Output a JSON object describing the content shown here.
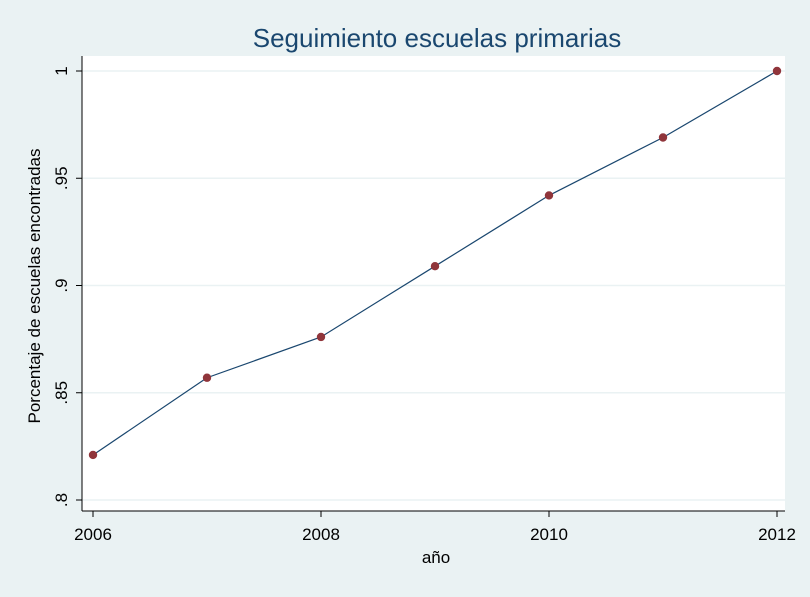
{
  "chart_data": {
    "type": "line",
    "title": "Seguimiento escuelas primarias",
    "xlabel": "año",
    "ylabel": "Porcentaje de escuelas encontradas",
    "x": [
      2006,
      2007,
      2008,
      2009,
      2010,
      2011,
      2012
    ],
    "series": [
      {
        "values": [
          0.821,
          0.857,
          0.876,
          0.909,
          0.942,
          0.969,
          1.0
        ]
      }
    ],
    "xlim": [
      2006,
      2012
    ],
    "ylim": [
      0.8,
      1.0
    ],
    "xticks": [
      2006,
      2008,
      2010,
      2012
    ],
    "xtick_labels": [
      "2006",
      "2008",
      "2010",
      "2012"
    ],
    "yticks": [
      0.8,
      0.85,
      0.9,
      0.95,
      1.0
    ],
    "ytick_labels": [
      ".8",
      ".85",
      ".9",
      ".95",
      "1"
    ],
    "grid": true,
    "colors": {
      "background": "#eaf2f3",
      "plot_area": "#ffffff",
      "gridline": "#eaf2f3",
      "line": "#1a476f",
      "marker": "#90353b",
      "title": "#1a476f"
    }
  }
}
